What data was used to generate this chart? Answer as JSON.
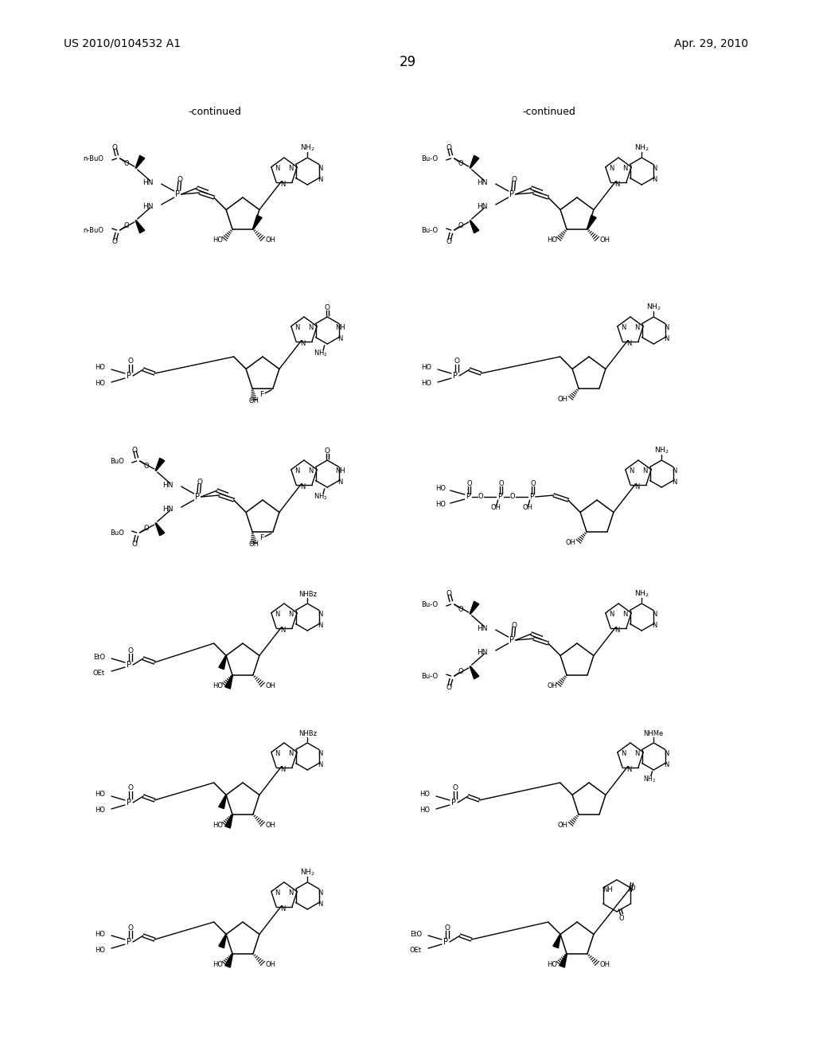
{
  "patent_number": "US 2010/0104532 A1",
  "patent_date": "Apr. 29, 2010",
  "page_number": "29",
  "background_color": "#ffffff",
  "text_color": "#000000",
  "continued_text": "-continued"
}
